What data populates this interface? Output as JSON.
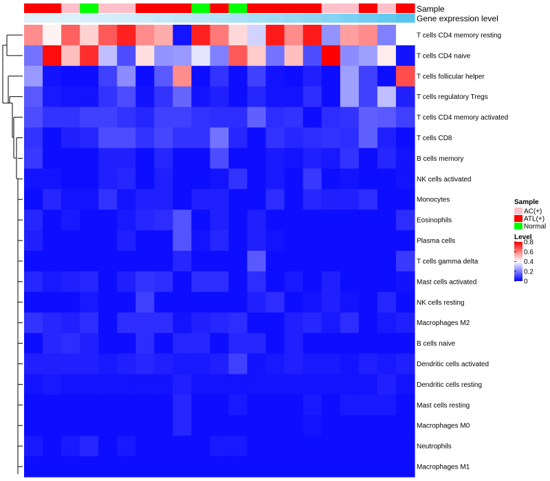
{
  "chart_data": {
    "type": "heatmap",
    "annotation_labels": {
      "sample": "Sample",
      "gene": "Gene expression level"
    },
    "rows": [
      "T cells CD4 memory resting",
      "T cells CD4 naive",
      "T cells follicular helper",
      "T cells regulatory  Tregs",
      "T cells CD4 memory activated",
      "T cells CD8",
      "B cells memory",
      "NK cells activated",
      "Monocytes",
      "Eosinophils",
      "Plasma cells",
      "T cells gamma delta",
      "Mast cells activated",
      "NK cells resting",
      "Macrophages M2",
      "B cells naive",
      "Dendritic cells activated",
      "Dendritic cells resting",
      "Mast cells resting",
      "Macrophages M0",
      "Neutrophils",
      "Macrophages M1"
    ],
    "sample_groups": [
      "ATL(+)",
      "ATL(+)",
      "AC(+)",
      "Normal",
      "AC(+)",
      "AC(+)",
      "ATL(+)",
      "ATL(+)",
      "ATL(+)",
      "Normal",
      "ATL(+)",
      "Normal",
      "ATL(+)",
      "ATL(+)",
      "ATL(+)",
      "ATL(+)",
      "AC(+)",
      "AC(+)",
      "ATL(+)",
      "AC(+)",
      "ATL(+)"
    ],
    "gene_expression": [
      0.05,
      0.05,
      0.08,
      0.1,
      0.12,
      0.15,
      0.18,
      0.22,
      0.26,
      0.3,
      0.35,
      0.4,
      0.45,
      0.5,
      0.55,
      0.6,
      0.66,
      0.72,
      0.8,
      0.88,
      0.95
    ],
    "values": [
      [
        0.58,
        0.42,
        0.65,
        0.47,
        0.66,
        0.75,
        0.58,
        0.53,
        0.03,
        0.75,
        0.61,
        0.46,
        0.33,
        0.76,
        0.58,
        0.76,
        0.23,
        0.55,
        0.58,
        0.2,
        0.4
      ],
      [
        0.18,
        0.78,
        0.5,
        0.73,
        0.3,
        0.12,
        0.45,
        0.23,
        0.24,
        0.36,
        0.2,
        0.66,
        0.48,
        0.18,
        0.5,
        0.12,
        0.8,
        0.22,
        0.25,
        0.43,
        0.03
      ],
      [
        0.24,
        0.03,
        0.02,
        0.02,
        0.1,
        0.22,
        0.02,
        0.14,
        0.58,
        0.02,
        0.08,
        0.02,
        0.1,
        0.03,
        0.02,
        0.05,
        0.02,
        0.25,
        0.1,
        0.02,
        0.68
      ],
      [
        0.14,
        0.04,
        0.03,
        0.03,
        0.08,
        0.12,
        0.03,
        0.08,
        0.16,
        0.03,
        0.05,
        0.02,
        0.06,
        0.03,
        0.03,
        0.07,
        0.02,
        0.25,
        0.1,
        0.3,
        0.05
      ],
      [
        0.12,
        0.08,
        0.08,
        0.1,
        0.1,
        0.08,
        0.06,
        0.1,
        0.1,
        0.08,
        0.07,
        0.07,
        0.15,
        0.07,
        0.08,
        0.02,
        0.07,
        0.08,
        0.15,
        0.14,
        0.1
      ],
      [
        0.08,
        0.02,
        0.05,
        0.06,
        0.12,
        0.12,
        0.08,
        0.11,
        0.08,
        0.08,
        0.18,
        0.06,
        0.02,
        0.08,
        0.06,
        0.07,
        0.08,
        0.07,
        0.15,
        0.05,
        0.02
      ],
      [
        0.09,
        0.02,
        0.02,
        0.02,
        0.05,
        0.05,
        0.02,
        0.06,
        0.02,
        0.02,
        0.12,
        0.02,
        0.02,
        0.04,
        0.03,
        0.05,
        0.04,
        0.08,
        0.02,
        0.06,
        0.03
      ],
      [
        0.03,
        0.03,
        0.02,
        0.02,
        0.05,
        0.06,
        0.02,
        0.05,
        0.02,
        0.02,
        0.03,
        0.08,
        0.02,
        0.04,
        0.02,
        0.09,
        0.02,
        0.03,
        0.02,
        0.02,
        0.03
      ],
      [
        0.02,
        0.06,
        0.03,
        0.03,
        0.08,
        0.03,
        0.05,
        0.05,
        0.02,
        0.05,
        0.05,
        0.02,
        0.02,
        0.07,
        0.02,
        0.06,
        0.05,
        0.05,
        0.07,
        0.02,
        0.02
      ],
      [
        0.06,
        0.02,
        0.04,
        0.02,
        0.02,
        0.04,
        0.06,
        0.07,
        0.13,
        0.02,
        0.05,
        0.02,
        0.05,
        0.02,
        0.02,
        0.02,
        0.02,
        0.02,
        0.02,
        0.02,
        0.07
      ],
      [
        0.05,
        0.02,
        0.02,
        0.02,
        0.02,
        0.05,
        0.02,
        0.02,
        0.13,
        0.03,
        0.06,
        0.02,
        0.05,
        0.03,
        0.02,
        0.02,
        0.02,
        0.02,
        0.02,
        0.02,
        0.02
      ],
      [
        0.02,
        0.02,
        0.02,
        0.02,
        0.02,
        0.02,
        0.02,
        0.02,
        0.06,
        0.02,
        0.02,
        0.02,
        0.14,
        0.02,
        0.02,
        0.02,
        0.02,
        0.02,
        0.02,
        0.02,
        0.09
      ],
      [
        0.06,
        0.04,
        0.05,
        0.06,
        0.02,
        0.05,
        0.08,
        0.07,
        0.02,
        0.07,
        0.07,
        0.02,
        0.07,
        0.02,
        0.04,
        0.02,
        0.05,
        0.02,
        0.02,
        0.02,
        0.03
      ],
      [
        0.02,
        0.02,
        0.02,
        0.04,
        0.02,
        0.02,
        0.1,
        0.02,
        0.02,
        0.02,
        0.02,
        0.02,
        0.05,
        0.07,
        0.02,
        0.03,
        0.05,
        0.03,
        0.02,
        0.06,
        0.02
      ],
      [
        0.08,
        0.06,
        0.05,
        0.07,
        0.02,
        0.07,
        0.07,
        0.07,
        0.03,
        0.05,
        0.06,
        0.07,
        0.02,
        0.02,
        0.05,
        0.06,
        0.04,
        0.07,
        0.02,
        0.04,
        0.05
      ],
      [
        0.02,
        0.06,
        0.07,
        0.05,
        0.02,
        0.02,
        0.07,
        0.02,
        0.06,
        0.06,
        0.02,
        0.06,
        0.06,
        0.02,
        0.05,
        0.02,
        0.02,
        0.02,
        0.02,
        0.02,
        0.02
      ],
      [
        0.05,
        0.05,
        0.05,
        0.05,
        0.04,
        0.05,
        0.06,
        0.05,
        0.04,
        0.04,
        0.05,
        0.1,
        0.03,
        0.04,
        0.05,
        0.04,
        0.04,
        0.03,
        0.05,
        0.04,
        0.05
      ],
      [
        0.03,
        0.04,
        0.03,
        0.03,
        0.03,
        0.03,
        0.03,
        0.03,
        0.05,
        0.03,
        0.03,
        0.03,
        0.03,
        0.03,
        0.03,
        0.03,
        0.03,
        0.03,
        0.03,
        0.05,
        0.03
      ],
      [
        0.02,
        0.02,
        0.02,
        0.02,
        0.02,
        0.02,
        0.02,
        0.02,
        0.06,
        0.02,
        0.02,
        0.04,
        0.02,
        0.02,
        0.02,
        0.04,
        0.02,
        0.04,
        0.04,
        0.04,
        0.02
      ],
      [
        0.02,
        0.02,
        0.02,
        0.02,
        0.02,
        0.02,
        0.02,
        0.02,
        0.06,
        0.02,
        0.02,
        0.02,
        0.02,
        0.02,
        0.02,
        0.03,
        0.02,
        0.02,
        0.02,
        0.02,
        0.02
      ],
      [
        0.04,
        0.02,
        0.04,
        0.06,
        0.02,
        0.04,
        0.02,
        0.02,
        0.02,
        0.02,
        0.04,
        0.04,
        0.02,
        0.02,
        0.02,
        0.02,
        0.02,
        0.02,
        0.02,
        0.02,
        0.02
      ],
      [
        0.02,
        0.02,
        0.02,
        0.02,
        0.02,
        0.02,
        0.02,
        0.02,
        0.02,
        0.02,
        0.02,
        0.02,
        0.02,
        0.02,
        0.02,
        0.02,
        0.02,
        0.02,
        0.02,
        0.02,
        0.02
      ]
    ],
    "legend": {
      "sample_title": "Sample",
      "sample_items": [
        {
          "label": "AC(+)",
          "color": "#ffc0cb"
        },
        {
          "label": "ATL(+)",
          "color": "#ff0000"
        },
        {
          "label": "Normal",
          "color": "#00ff00"
        }
      ],
      "level_title": "Level",
      "level_ticks": [
        "0.8",
        "0.6",
        "0.4",
        "0.2",
        "0"
      ],
      "level_values": [
        0.8,
        0.6,
        0.4,
        0.2,
        0.0
      ],
      "range": [
        0,
        0.8
      ]
    },
    "colors": {
      "low": "#0000ff",
      "mid": "#ffffff",
      "high": "#ff0000",
      "gene_low": "#e6f4fb",
      "gene_high": "#52c3ee"
    }
  }
}
